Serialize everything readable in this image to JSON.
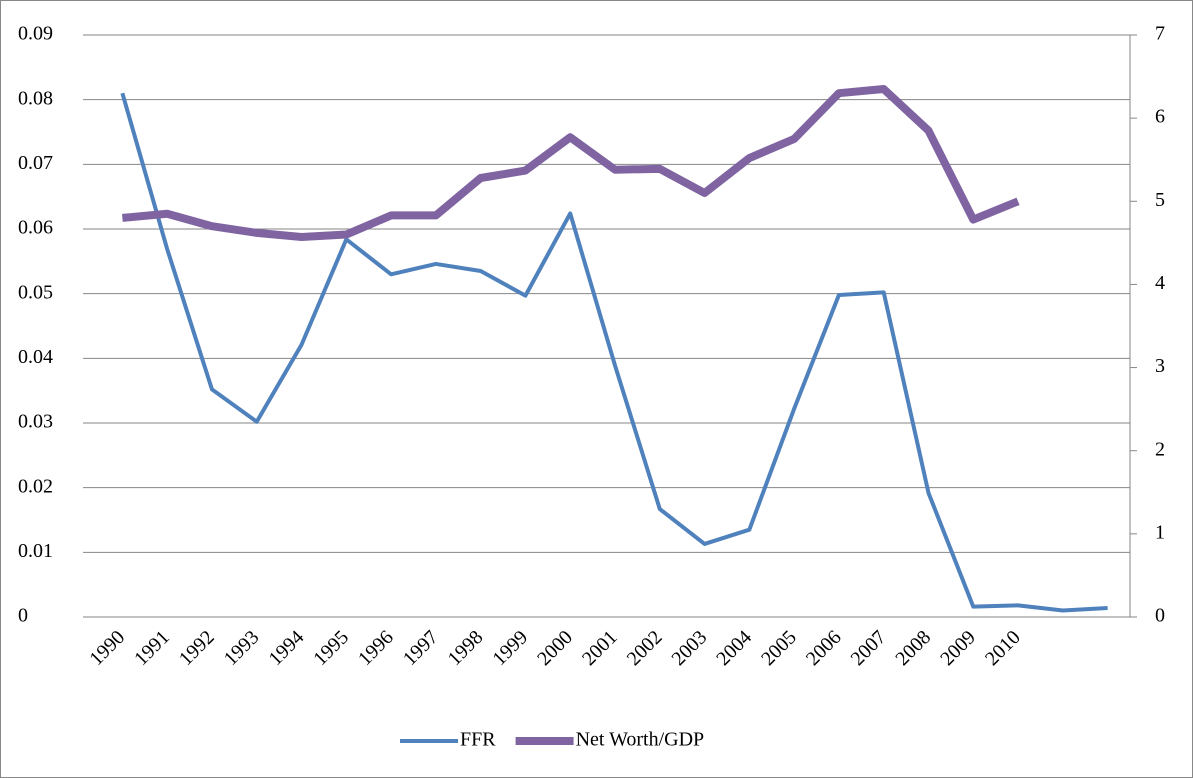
{
  "chart_data": {
    "type": "line",
    "categories": [
      "1990",
      "1991",
      "1992",
      "1993",
      "1994",
      "1995",
      "1996",
      "1997",
      "1998",
      "1999",
      "2000",
      "2001",
      "2002",
      "2003",
      "2004",
      "2005",
      "2006",
      "2007",
      "2008",
      "2009",
      "2010",
      null,
      null
    ],
    "series": [
      {
        "name": "FFR",
        "color": "#4f81bd",
        "values": [
          0.081,
          0.0569,
          0.0352,
          0.0302,
          0.0421,
          0.0584,
          0.053,
          0.0546,
          0.0535,
          0.0497,
          0.0624,
          0.0389,
          0.0167,
          0.0113,
          0.0135,
          0.0322,
          0.0498,
          0.0502,
          0.0192,
          0.0016,
          0.0018,
          0.001,
          0.0014
        ]
      },
      {
        "name": "Net Worth/GDP",
        "color": "#8064a2",
        "axis": "y2",
        "values": [
          4.8,
          4.85,
          4.7,
          4.62,
          4.57,
          4.6,
          4.83,
          4.83,
          5.28,
          5.37,
          5.77,
          5.38,
          5.39,
          5.1,
          5.52,
          5.75,
          6.3,
          6.35,
          5.85,
          4.78,
          5.0,
          null,
          null
        ]
      }
    ],
    "ylim": [
      0,
      0.09
    ],
    "yticks": [
      0,
      0.01,
      0.02,
      0.03,
      0.04,
      0.05,
      0.06,
      0.07,
      0.08,
      0.09
    ],
    "y2lim": [
      0,
      7
    ],
    "y2ticks": [
      0,
      1,
      2,
      3,
      4,
      5,
      6,
      7
    ],
    "grid": true,
    "legend": "bottom"
  }
}
